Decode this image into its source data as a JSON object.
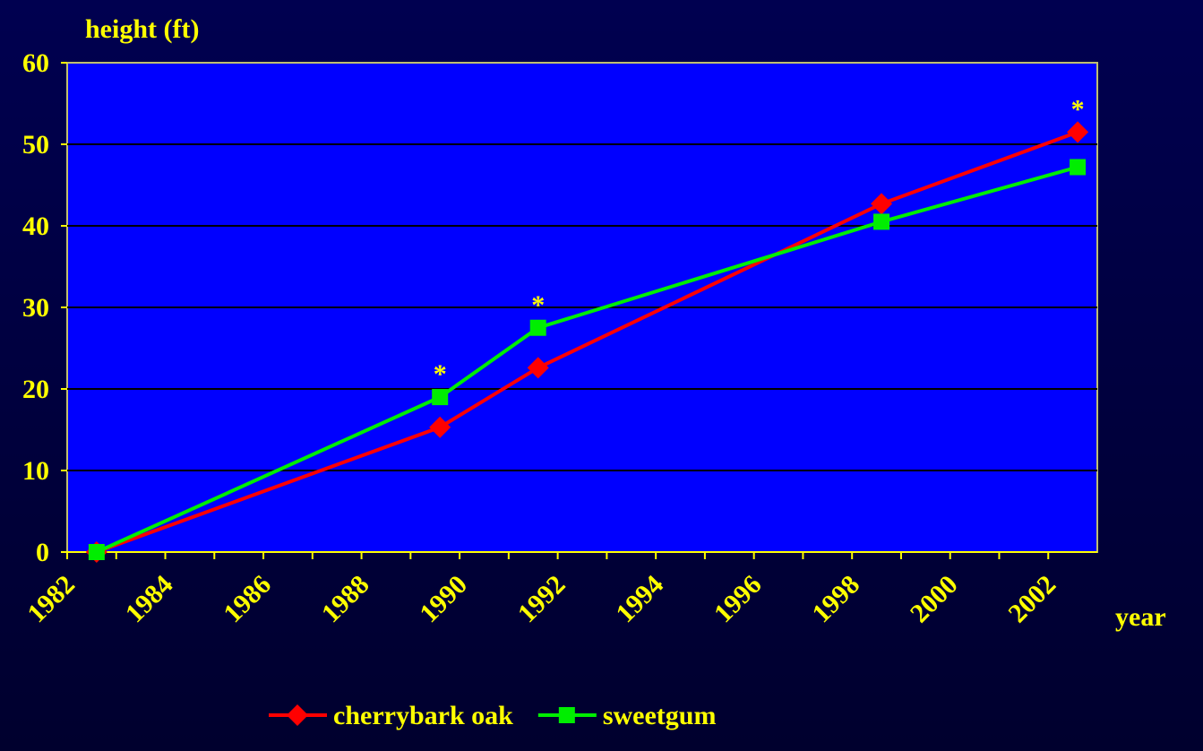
{
  "chart_data": {
    "type": "line",
    "y_label": "height (ft)",
    "x_label": "year",
    "x": [
      1982.6,
      1989.6,
      1991.6,
      1998.6,
      2002.6
    ],
    "series": [
      {
        "name": "cherrybark oak",
        "color": "#ff0000",
        "marker": "diamond",
        "values": [
          0,
          15.3,
          22.6,
          42.7,
          51.5
        ]
      },
      {
        "name": "sweetgum",
        "color": "#00ee00",
        "marker": "square",
        "values": [
          0,
          19,
          27.5,
          40.5,
          47.2
        ]
      }
    ],
    "annotations": [
      {
        "text": "*",
        "x": 1989.6
      },
      {
        "text": "*",
        "x": 1991.6
      },
      {
        "text": "*",
        "x": 2002.6
      }
    ],
    "xlim": [
      1982,
      2003
    ],
    "xticks": [
      1982,
      1984,
      1986,
      1988,
      1990,
      1992,
      1994,
      1996,
      1998,
      2000,
      2002
    ],
    "ylim": [
      0,
      60
    ],
    "yticks": [
      0,
      10,
      20,
      30,
      40,
      50,
      60
    ],
    "grid": true,
    "plot_color": "#0000ff",
    "legend": "bottom"
  }
}
